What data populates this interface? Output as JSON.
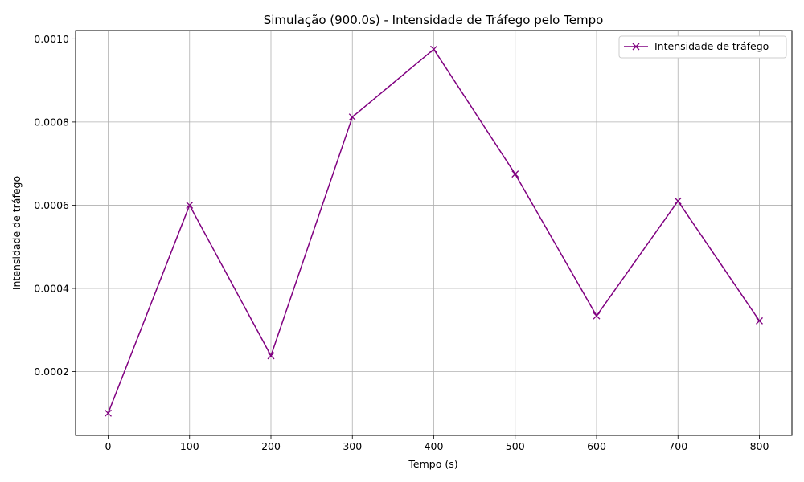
{
  "chart_data": {
    "type": "line",
    "title": "Simulação (900.0s) - Intensidade de Tráfego pelo Tempo",
    "xlabel": "Tempo (s)",
    "ylabel": "Intensidade de tráfego",
    "x": [
      0,
      100,
      200,
      300,
      400,
      500,
      600,
      700,
      800
    ],
    "series": [
      {
        "name": "Intensidade de tráfego",
        "color": "#800080",
        "marker": "x",
        "values": [
          0.0001,
          0.0006,
          0.000238,
          0.000812,
          0.000975,
          0.000675,
          0.000334,
          0.00061,
          0.000322
        ]
      }
    ],
    "xlim": [
      -40,
      840
    ],
    "ylim": [
      4.65e-05,
      0.00102
    ],
    "xticks": [
      0,
      100,
      200,
      300,
      400,
      500,
      600,
      700,
      800
    ],
    "xtick_labels": [
      "0",
      "100",
      "200",
      "300",
      "400",
      "500",
      "600",
      "700",
      "800"
    ],
    "yticks": [
      0.0002,
      0.0004,
      0.0006,
      0.0008,
      0.001
    ],
    "ytick_labels": [
      "0.0002",
      "0.0004",
      "0.0006",
      "0.0008",
      "0.0010"
    ],
    "grid": true,
    "legend_position": "top-right"
  }
}
